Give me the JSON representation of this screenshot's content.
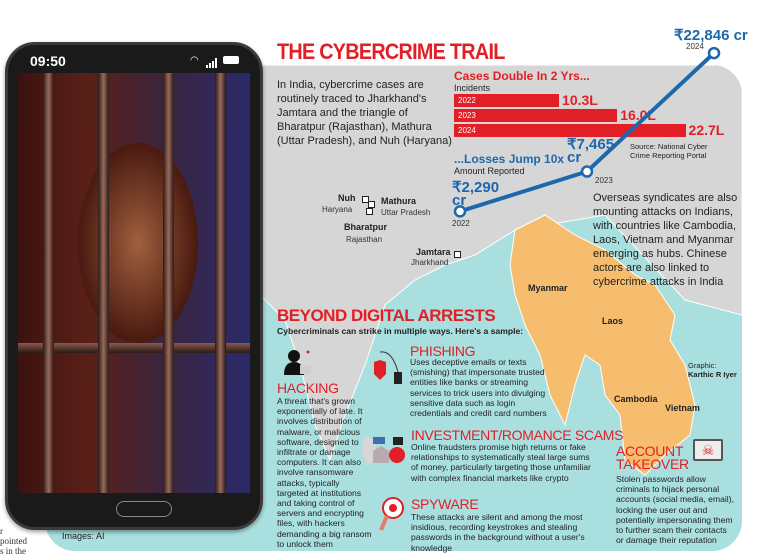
{
  "title": "THE CYBERCRIME TRAIL",
  "intro": "In India, cybercrime cases are routinely traced to Jharkhand's Jamtara and the triangle of Bharatpur (Rajasthan), Mathura (Uttar Pradesh), and Nuh (Haryana)",
  "cases": {
    "heading": "Cases Double In 2 Yrs...",
    "subheading": "Incidents",
    "bars": [
      {
        "year": "2022",
        "value": 10.3,
        "label": "10.3L"
      },
      {
        "year": "2023",
        "value": 16.0,
        "label": "16.0L"
      },
      {
        "year": "2024",
        "value": 22.7,
        "label": "22.7L"
      }
    ],
    "source": "Source: National Cyber Crime Reporting Portal"
  },
  "losses": {
    "heading": "...Losses Jump 10x",
    "subheading": "Amount Reported",
    "points": [
      {
        "year": "2022",
        "value": 2290,
        "label": "₹2,290 cr"
      },
      {
        "year": "2023",
        "value": 7465,
        "label": "₹7,465 cr"
      },
      {
        "year": "2024",
        "value": 22846,
        "label": "₹22,846 cr"
      }
    ],
    "line_color": "#1d68ad"
  },
  "overseas": "Overseas syndicates are also mounting attacks on Indians, with countries like Cambodia, Laos, Vietnam and Myanmar emerging as hubs. Chinese actors are also linked to cybercrime attacks in India",
  "map": {
    "places": [
      {
        "name": "Nuh",
        "state": "Haryana"
      },
      {
        "name": "Mathura",
        "state": "Uttar Pradesh"
      },
      {
        "name": "Bharatpur",
        "state": "Rajasthan"
      },
      {
        "name": "Jamtara",
        "state": "Jharkhand"
      }
    ],
    "countries": [
      "Myanmar",
      "Laos",
      "Cambodia",
      "Vietnam"
    ],
    "colors": {
      "land": "#d6d6d6",
      "sea": "#a9dfdf",
      "hubs": "#f7bd6e"
    }
  },
  "beyond": {
    "heading": "BEYOND DIGITAL ARRESTS",
    "subheading": "Cybercriminals can strike in multiple ways. Here's a sample:",
    "hacking": {
      "title": "HACKING",
      "text": "A threat that's grown exponentially of late. It involves distribution of malware, or malicious software, designed to infiltrate or damage computers. It can also involve ransomware attacks, typically targeted at institutions and taking control of servers and encrypting files, with hackers demanding a big ransom to unlock them"
    },
    "phishing": {
      "title": "PHISHING",
      "text": "Uses deceptive emails or texts (smishing) that impersonate trusted entities like banks or streaming services to trick users into divulging sensitive data such as login credentials and credit card numbers"
    },
    "investment": {
      "title": "INVESTMENT/ROMANCE SCAMS",
      "text": "Online fraudsters promise high returns or fake relationships to systematically steal large sums of money, particularly targeting those unfamiliar with complex financial markets like crypto"
    },
    "spyware": {
      "title": "SPYWARE",
      "text": "These attacks are silent and among the most insidious, recording keystrokes and stealing passwords in the background without a user's knowledge"
    },
    "account": {
      "title": "ACCOUNT TAKEOVER",
      "text": "Stolen passwords allow criminals to hijack personal accounts (social media, email), locking the user out and potentially impersonating them to further scam their contacts or damage their reputation"
    }
  },
  "credit": {
    "label": "Graphic:",
    "name": "Karthic R Iyer"
  },
  "images_credit": "Images: AI",
  "phone": {
    "time": "09:50"
  },
  "side_text": [
    "r",
    "pointed",
    "s in the"
  ]
}
